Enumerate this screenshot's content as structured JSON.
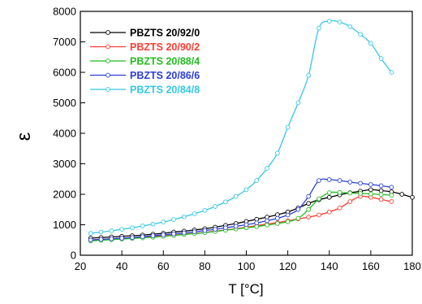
{
  "chart_data": {
    "type": "line",
    "xlabel": "T [°C]",
    "ylabel": "ε",
    "xlim": [
      20,
      180
    ],
    "ylim": [
      0,
      8000
    ],
    "xticks": [
      "20",
      "40",
      "60",
      "80",
      "100",
      "120",
      "140",
      "160",
      "180"
    ],
    "yticks": [
      "0",
      "1000",
      "2000",
      "3000",
      "4000",
      "5000",
      "6000",
      "7000",
      "8000"
    ],
    "grid": false,
    "legend": "top-left",
    "series": [
      {
        "name": "PBZTS 20/92/0",
        "color": "#000000",
        "x": [
          25,
          30,
          35,
          40,
          45,
          50,
          55,
          60,
          65,
          70,
          75,
          80,
          85,
          90,
          95,
          100,
          105,
          110,
          115,
          120,
          125,
          130,
          135,
          140,
          145,
          150,
          155,
          160,
          165,
          170,
          175,
          180
        ],
        "y": [
          560,
          580,
          600,
          620,
          640,
          660,
          690,
          720,
          760,
          790,
          830,
          870,
          920,
          980,
          1040,
          1110,
          1180,
          1250,
          1330,
          1420,
          1550,
          1700,
          1820,
          1900,
          1980,
          2050,
          2100,
          2150,
          2120,
          2080,
          2000,
          1900
        ]
      },
      {
        "name": "PBZTS 20/90/2",
        "color": "#ff3b30",
        "x": [
          25,
          30,
          35,
          40,
          45,
          50,
          55,
          60,
          65,
          70,
          75,
          80,
          85,
          90,
          95,
          100,
          105,
          110,
          115,
          120,
          125,
          130,
          135,
          140,
          145,
          150,
          155,
          160,
          165,
          170
        ],
        "y": [
          500,
          520,
          540,
          560,
          580,
          600,
          620,
          640,
          660,
          690,
          720,
          750,
          790,
          830,
          870,
          920,
          970,
          1020,
          1070,
          1130,
          1190,
          1250,
          1320,
          1420,
          1550,
          1760,
          1930,
          1900,
          1830,
          1760
        ]
      },
      {
        "name": "PBZTS 20/88/4",
        "color": "#22bb22",
        "x": [
          25,
          30,
          35,
          40,
          45,
          50,
          55,
          60,
          65,
          70,
          75,
          80,
          85,
          90,
          95,
          100,
          105,
          110,
          115,
          120,
          125,
          130,
          135,
          140,
          145,
          150,
          155,
          160,
          165,
          170
        ],
        "y": [
          470,
          490,
          510,
          530,
          550,
          570,
          590,
          620,
          650,
          680,
          710,
          740,
          780,
          820,
          860,
          900,
          940,
          990,
          1040,
          1100,
          1210,
          1500,
          1850,
          2050,
          2060,
          2040,
          2030,
          2010,
          1990,
          1970
        ]
      },
      {
        "name": "PBZTS 20/86/6",
        "color": "#2b3fd6",
        "x": [
          25,
          30,
          35,
          40,
          45,
          50,
          55,
          60,
          65,
          70,
          75,
          80,
          85,
          90,
          95,
          100,
          105,
          110,
          115,
          120,
          125,
          130,
          135,
          140,
          145,
          150,
          155,
          160,
          165,
          170
        ],
        "y": [
          500,
          520,
          540,
          560,
          580,
          610,
          640,
          670,
          700,
          730,
          770,
          810,
          850,
          900,
          950,
          1000,
          1060,
          1130,
          1210,
          1320,
          1500,
          1930,
          2450,
          2480,
          2450,
          2400,
          2360,
          2320,
          2280,
          2230
        ]
      },
      {
        "name": "PBZTS 20/84/8",
        "color": "#33c7e6",
        "x": [
          25,
          30,
          35,
          40,
          45,
          50,
          55,
          60,
          65,
          70,
          75,
          80,
          85,
          90,
          95,
          100,
          105,
          110,
          115,
          120,
          125,
          130,
          135,
          140,
          145,
          150,
          155,
          160,
          165,
          170
        ],
        "y": [
          720,
          760,
          800,
          850,
          900,
          960,
          1020,
          1090,
          1170,
          1260,
          1360,
          1470,
          1600,
          1750,
          1930,
          2150,
          2450,
          2850,
          3350,
          4200,
          5000,
          5900,
          7450,
          7680,
          7650,
          7500,
          7250,
          6950,
          6450,
          6000
        ]
      }
    ]
  }
}
